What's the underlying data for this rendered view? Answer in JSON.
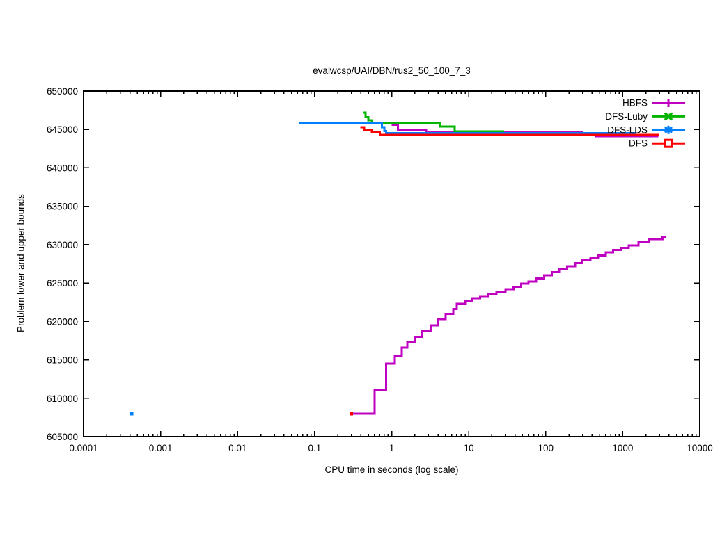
{
  "chart_data": {
    "type": "line",
    "title": "evalwcsp/UAI/DBN/rus2_50_100_7_3",
    "xlabel": "CPU time in seconds (log scale)",
    "ylabel": "Problem lower and upper bounds",
    "x_scale": "log",
    "xlim": [
      0.0001,
      10000
    ],
    "ylim": [
      605000,
      650000
    ],
    "x_ticks": [
      0.0001,
      0.001,
      0.01,
      0.1,
      1,
      10,
      100,
      1000,
      10000
    ],
    "x_tick_labels": [
      "0.0001",
      "0.001",
      "0.01",
      "0.1",
      "1",
      "10",
      "100",
      "1000",
      "10000"
    ],
    "y_tick_step": 5000,
    "y_ticks": [
      605000,
      610000,
      615000,
      620000,
      625000,
      630000,
      635000,
      640000,
      645000,
      650000
    ],
    "y_tick_labels": [
      "605000",
      "610000",
      "615000",
      "620000",
      "625000",
      "630000",
      "635000",
      "640000",
      "645000",
      "650000"
    ],
    "grid": false,
    "legend_position": "top-right-inside",
    "series": [
      {
        "name": "HBFS",
        "color": "#c000c0",
        "marker": "plus",
        "lines": [
          {
            "comment": "upper bound",
            "points": [
              [
                1.0,
                645600
              ],
              [
                1.2,
                644900
              ],
              [
                2.8,
                644650
              ],
              [
                300,
                644500
              ],
              [
                450,
                644100
              ]
            ],
            "end": 2900
          },
          {
            "comment": "lower bound staircase",
            "points": [
              [
                0.3,
                608000
              ],
              [
                0.6,
                611000
              ],
              [
                0.85,
                614500
              ],
              [
                1.1,
                615500
              ],
              [
                1.35,
                616600
              ],
              [
                1.6,
                617300
              ],
              [
                2.0,
                618000
              ],
              [
                2.5,
                618700
              ],
              [
                3.2,
                619500
              ],
              [
                4.0,
                620300
              ],
              [
                5.0,
                621000
              ],
              [
                6.3,
                621600
              ],
              [
                7.0,
                622300
              ],
              [
                9,
                622700
              ],
              [
                11,
                623000
              ],
              [
                14,
                623300
              ],
              [
                18,
                623600
              ],
              [
                23,
                623900
              ],
              [
                30,
                624200
              ],
              [
                38,
                624500
              ],
              [
                48,
                624900
              ],
              [
                60,
                625200
              ],
              [
                75,
                625600
              ],
              [
                95,
                626000
              ],
              [
                120,
                626400
              ],
              [
                150,
                626800
              ],
              [
                190,
                627200
              ],
              [
                240,
                627600
              ],
              [
                300,
                628000
              ],
              [
                380,
                628300
              ],
              [
                480,
                628600
              ],
              [
                600,
                629000
              ],
              [
                750,
                629300
              ],
              [
                950,
                629600
              ],
              [
                1200,
                629900
              ],
              [
                1600,
                630300
              ],
              [
                2200,
                630700
              ],
              [
                3300,
                631000
              ]
            ],
            "end": 3600
          }
        ],
        "dots": []
      },
      {
        "name": "DFS-Luby",
        "color": "#00b400",
        "marker": "cross",
        "lines": [
          {
            "points": [
              [
                0.42,
                647200
              ],
              [
                0.46,
                646600
              ],
              [
                0.5,
                646200
              ],
              [
                0.56,
                645800
              ],
              [
                4.3,
                645400
              ],
              [
                6.6,
                644750
              ],
              [
                28,
                644450
              ],
              [
                380,
                644250
              ]
            ],
            "end": 980
          }
        ],
        "dots": []
      },
      {
        "name": "DFS-LDS",
        "color": "#0080ff",
        "marker": "asterisk",
        "lines": [
          {
            "points": [
              [
                0.062,
                645900
              ],
              [
                0.75,
                645300
              ],
              [
                0.8,
                644800
              ],
              [
                0.85,
                644500
              ]
            ],
            "end": 1500
          }
        ],
        "dots": [
          [
            0.00042,
            608000
          ]
        ]
      },
      {
        "name": "DFS",
        "color": "#ff0000",
        "marker": "square",
        "lines": [
          {
            "points": [
              [
                0.39,
                645300
              ],
              [
                0.44,
                644900
              ],
              [
                0.55,
                644600
              ],
              [
                0.7,
                644300
              ]
            ],
            "end": 3000
          }
        ],
        "dots": [
          [
            0.3,
            608000
          ]
        ]
      }
    ]
  }
}
